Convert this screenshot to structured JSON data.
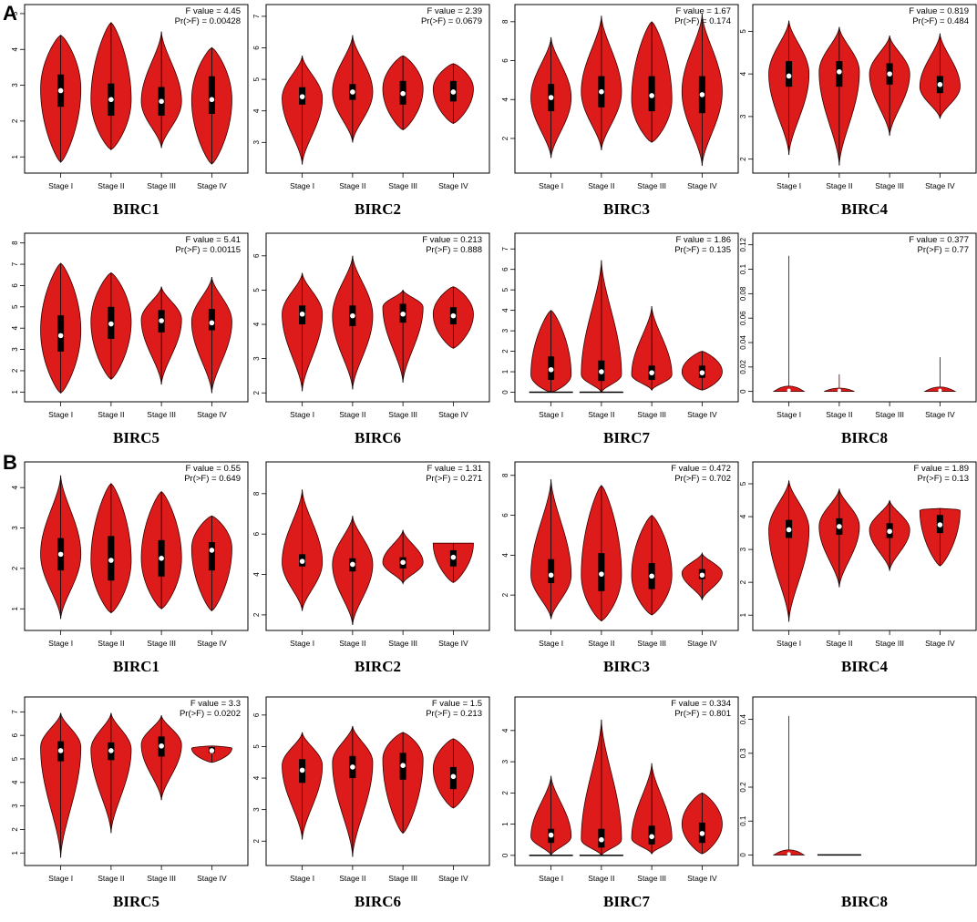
{
  "colors": {
    "violin_fill": "#dd1b1b",
    "violin_stroke": "#3a0000",
    "box": "#000000",
    "median": "#ffffff",
    "frame": "#000000"
  },
  "panels": [
    {
      "label": "A"
    },
    {
      "label": "B"
    }
  ],
  "chart_data": [
    {
      "type": "violin",
      "panel": "A",
      "title": "BIRC1",
      "stats": [
        "F value = 4.45",
        "Pr(>F) = 0.00428"
      ],
      "categories": [
        "Stage I",
        "Stage II",
        "Stage III",
        "Stage IV"
      ],
      "ylim": [
        0.7,
        5.1
      ],
      "yticks": [
        1,
        2,
        3,
        4,
        5
      ],
      "series": [
        {
          "min": 0.85,
          "q1": 2.4,
          "median": 2.85,
          "q3": 3.3,
          "max": 4.4,
          "mode": 2.9
        },
        {
          "min": 1.2,
          "q1": 2.15,
          "median": 2.6,
          "q3": 3.05,
          "max": 4.75,
          "mode": 2.6
        },
        {
          "min": 1.25,
          "q1": 2.15,
          "median": 2.55,
          "q3": 2.95,
          "max": 4.5,
          "mode": 2.55
        },
        {
          "min": 0.8,
          "q1": 2.2,
          "median": 2.6,
          "q3": 3.25,
          "max": 4.05,
          "mode": 2.6
        }
      ]
    },
    {
      "type": "violin",
      "panel": "A",
      "title": "BIRC2",
      "stats": [
        "F value = 2.39",
        "Pr(>F) = 0.0679"
      ],
      "categories": [
        "Stage I",
        "Stage II",
        "Stage III",
        "Stage IV"
      ],
      "ylim": [
        2.2,
        7.2
      ],
      "yticks": [
        3,
        4,
        5,
        6,
        7
      ],
      "series": [
        {
          "min": 2.3,
          "q1": 4.2,
          "median": 4.45,
          "q3": 4.75,
          "max": 5.75,
          "mode": 4.4
        },
        {
          "min": 3.0,
          "q1": 4.35,
          "median": 4.6,
          "q3": 4.85,
          "max": 6.4,
          "mode": 4.6
        },
        {
          "min": 3.4,
          "q1": 4.2,
          "median": 4.55,
          "q3": 4.95,
          "max": 5.75,
          "mode": 4.7
        },
        {
          "min": 3.6,
          "q1": 4.3,
          "median": 4.6,
          "q3": 4.95,
          "max": 5.5,
          "mode": 4.7
        }
      ]
    },
    {
      "type": "violin",
      "panel": "A",
      "title": "BIRC3",
      "stats": [
        "F value = 1.67",
        "Pr(>F) = 0.174"
      ],
      "categories": [
        "Stage I",
        "Stage II",
        "Stage III",
        "Stage IV"
      ],
      "ylim": [
        0.5,
        8.6
      ],
      "yticks": [
        2,
        4,
        6,
        8
      ],
      "series": [
        {
          "min": 1.0,
          "q1": 3.4,
          "median": 4.1,
          "q3": 4.8,
          "max": 7.2,
          "mode": 4.1
        },
        {
          "min": 1.4,
          "q1": 3.6,
          "median": 4.4,
          "q3": 5.2,
          "max": 8.3,
          "mode": 4.4
        },
        {
          "min": 1.8,
          "q1": 3.4,
          "median": 4.2,
          "q3": 5.2,
          "max": 8.0,
          "mode": 4.0
        },
        {
          "min": 0.6,
          "q1": 3.3,
          "median": 4.25,
          "q3": 5.2,
          "max": 8.4,
          "mode": 4.4
        }
      ]
    },
    {
      "type": "violin",
      "panel": "A",
      "title": "BIRC4",
      "stats": [
        "F value = 0.819",
        "Pr(>F) = 0.484"
      ],
      "categories": [
        "Stage I",
        "Stage II",
        "Stage III",
        "Stage IV"
      ],
      "ylim": [
        1.8,
        5.5
      ],
      "yticks": [
        2,
        3,
        4,
        5
      ],
      "series": [
        {
          "min": 2.1,
          "q1": 3.7,
          "median": 3.95,
          "q3": 4.3,
          "max": 5.25,
          "mode": 4.0
        },
        {
          "min": 1.85,
          "q1": 3.7,
          "median": 4.05,
          "q3": 4.3,
          "max": 5.1,
          "mode": 4.05
        },
        {
          "min": 2.55,
          "q1": 3.75,
          "median": 4.0,
          "q3": 4.25,
          "max": 4.9,
          "mode": 4.0
        },
        {
          "min": 2.95,
          "q1": 3.55,
          "median": 3.75,
          "q3": 3.95,
          "max": 4.95,
          "mode": 3.7
        }
      ]
    },
    {
      "type": "violin",
      "panel": "A",
      "title": "BIRC5",
      "stats": [
        "F value = 5.41",
        "Pr(>F) = 0.00115"
      ],
      "categories": [
        "Stage I",
        "Stage II",
        "Stage III",
        "Stage IV"
      ],
      "ylim": [
        0.8,
        8.2
      ],
      "yticks": [
        1,
        2,
        3,
        4,
        5,
        6,
        7,
        8
      ],
      "series": [
        {
          "min": 0.95,
          "q1": 2.9,
          "median": 3.65,
          "q3": 4.6,
          "max": 7.05,
          "mode": 3.9
        },
        {
          "min": 1.6,
          "q1": 3.5,
          "median": 4.2,
          "q3": 5.0,
          "max": 6.6,
          "mode": 4.3
        },
        {
          "min": 1.35,
          "q1": 3.8,
          "median": 4.35,
          "q3": 4.85,
          "max": 5.95,
          "mode": 4.4
        },
        {
          "min": 0.95,
          "q1": 3.9,
          "median": 4.25,
          "q3": 4.9,
          "max": 6.4,
          "mode": 4.3
        }
      ]
    },
    {
      "type": "violin",
      "panel": "A",
      "title": "BIRC6",
      "stats": [
        "F value = 0.213",
        "Pr(>F) = 0.888"
      ],
      "categories": [
        "Stage I",
        "Stage II",
        "Stage III",
        "Stage IV"
      ],
      "ylim": [
        1.9,
        6.5
      ],
      "yticks": [
        2,
        3,
        4,
        5,
        6
      ],
      "series": [
        {
          "min": 2.05,
          "q1": 4.0,
          "median": 4.3,
          "q3": 4.55,
          "max": 5.5,
          "mode": 4.3
        },
        {
          "min": 2.1,
          "q1": 3.95,
          "median": 4.25,
          "q3": 4.55,
          "max": 6.0,
          "mode": 4.25
        },
        {
          "min": 2.3,
          "q1": 4.05,
          "median": 4.3,
          "q3": 4.6,
          "max": 5.0,
          "mode": 4.5
        },
        {
          "min": 3.3,
          "q1": 4.0,
          "median": 4.25,
          "q3": 4.5,
          "max": 5.1,
          "mode": 4.3
        }
      ]
    },
    {
      "type": "violin",
      "panel": "A",
      "title": "BIRC7",
      "stats": [
        "F value = 1.86",
        "Pr(>F) = 0.135"
      ],
      "categories": [
        "Stage I",
        "Stage II",
        "Stage III",
        "Stage IV"
      ],
      "ylim": [
        -0.2,
        7.5
      ],
      "yticks": [
        0,
        1,
        2,
        3,
        4,
        5,
        6,
        7
      ],
      "series": [
        {
          "min": 0.0,
          "q1": 0.6,
          "median": 1.1,
          "q3": 1.75,
          "max": 4.0,
          "mode": 0.85,
          "zero_line": true
        },
        {
          "min": 0.0,
          "q1": 0.55,
          "median": 1.0,
          "q3": 1.55,
          "max": 6.45,
          "mode": 0.85,
          "zero_line": true
        },
        {
          "min": 0.1,
          "q1": 0.6,
          "median": 0.95,
          "q3": 1.3,
          "max": 4.2,
          "mode": 0.85
        },
        {
          "min": 0.1,
          "q1": 0.7,
          "median": 0.95,
          "q3": 1.3,
          "max": 2.0,
          "mode": 1.0
        }
      ]
    },
    {
      "type": "violin",
      "panel": "A",
      "title": "BIRC8",
      "stats": [
        "F value = 0.377",
        "Pr(>F) = 0.77"
      ],
      "categories": [
        "Stage I",
        "Stage II",
        "Stage III",
        "Stage IV"
      ],
      "ylim": [
        -0.004,
        0.125
      ],
      "yticks": [
        0.0,
        0.02,
        0.04,
        0.06,
        0.08,
        0.1,
        0.12
      ],
      "series": [
        {
          "min": 0.0,
          "q1": 0.0,
          "median": 0.0,
          "q3": 0.001,
          "max": 0.111,
          "mode": 0.002,
          "flat": true
        },
        {
          "min": 0.0,
          "q1": 0.0,
          "median": 0.0,
          "q3": 0.0005,
          "max": 0.014,
          "mode": 0.001,
          "flat": true
        },
        null,
        {
          "min": 0.0,
          "q1": 0.0,
          "median": 0.0,
          "q3": 0.002,
          "max": 0.028,
          "mode": 0.003,
          "flat": true
        }
      ]
    },
    {
      "type": "violin",
      "panel": "B",
      "title": "BIRC1",
      "stats": [
        "F value = 0.55",
        "Pr(>F) = 0.649"
      ],
      "categories": [
        "Stage I",
        "Stage II",
        "Stage III",
        "Stage IV"
      ],
      "ylim": [
        0.6,
        4.5
      ],
      "yticks": [
        1,
        2,
        3,
        4
      ],
      "series": [
        {
          "min": 0.75,
          "q1": 1.95,
          "median": 2.35,
          "q3": 2.75,
          "max": 4.3,
          "mode": 2.35
        },
        {
          "min": 0.9,
          "q1": 1.7,
          "median": 2.2,
          "q3": 2.8,
          "max": 4.1,
          "mode": 2.2
        },
        {
          "min": 1.0,
          "q1": 1.8,
          "median": 2.25,
          "q3": 2.7,
          "max": 3.9,
          "mode": 2.25
        },
        {
          "min": 0.95,
          "q1": 1.95,
          "median": 2.45,
          "q3": 2.65,
          "max": 3.3,
          "mode": 2.5
        }
      ]
    },
    {
      "type": "violin",
      "panel": "B",
      "title": "BIRC2",
      "stats": [
        "F value = 1.31",
        "Pr(>F) = 0.271"
      ],
      "categories": [
        "Stage I",
        "Stage II",
        "Stage III",
        "Stage IV"
      ],
      "ylim": [
        1.5,
        9.3
      ],
      "yticks": [
        2,
        4,
        6,
        8
      ],
      "series": [
        {
          "min": 2.2,
          "q1": 4.4,
          "median": 4.65,
          "q3": 5.0,
          "max": 8.2,
          "mode": 4.6
        },
        {
          "min": 1.5,
          "q1": 4.15,
          "median": 4.5,
          "q3": 4.8,
          "max": 6.9,
          "mode": 4.5
        },
        {
          "min": 3.55,
          "q1": 4.3,
          "median": 4.6,
          "q3": 4.85,
          "max": 6.2,
          "mode": 4.6
        },
        {
          "min": 3.6,
          "q1": 4.4,
          "median": 4.85,
          "q3": 5.2,
          "max": 5.55,
          "mode": 5.55
        }
      ]
    },
    {
      "type": "violin",
      "panel": "B",
      "title": "BIRC3",
      "stats": [
        "F value = 0.472",
        "Pr(>F) = 0.702"
      ],
      "categories": [
        "Stage I",
        "Stage II",
        "Stage III",
        "Stage IV"
      ],
      "ylim": [
        0.5,
        8.4
      ],
      "yticks": [
        2,
        4,
        6,
        8
      ],
      "series": [
        {
          "min": 0.8,
          "q1": 2.6,
          "median": 3.0,
          "q3": 3.8,
          "max": 7.8,
          "mode": 3.0
        },
        {
          "min": 0.7,
          "q1": 2.2,
          "median": 3.05,
          "q3": 4.1,
          "max": 7.5,
          "mode": 3.0
        },
        {
          "min": 1.0,
          "q1": 2.3,
          "median": 2.95,
          "q3": 3.6,
          "max": 6.0,
          "mode": 3.0
        },
        {
          "min": 1.75,
          "q1": 2.8,
          "median": 3.0,
          "q3": 3.3,
          "max": 4.1,
          "mode": 3.1
        }
      ]
    },
    {
      "type": "violin",
      "panel": "B",
      "title": "BIRC4",
      "stats": [
        "F value = 1.89",
        "Pr(>F) = 0.13"
      ],
      "categories": [
        "Stage I",
        "Stage II",
        "Stage III",
        "Stage IV"
      ],
      "ylim": [
        0.7,
        5.5
      ],
      "yticks": [
        1,
        2,
        3,
        4,
        5
      ],
      "series": [
        {
          "min": 0.8,
          "q1": 3.35,
          "median": 3.6,
          "q3": 3.9,
          "max": 5.1,
          "mode": 3.6
        },
        {
          "min": 1.85,
          "q1": 3.45,
          "median": 3.7,
          "q3": 3.95,
          "max": 4.85,
          "mode": 3.7
        },
        {
          "min": 2.35,
          "q1": 3.35,
          "median": 3.55,
          "q3": 3.8,
          "max": 4.5,
          "mode": 3.6
        },
        {
          "min": 2.5,
          "q1": 3.5,
          "median": 3.75,
          "q3": 4.05,
          "max": 4.25,
          "mode": 4.2
        }
      ]
    },
    {
      "type": "violin",
      "panel": "B",
      "title": "BIRC5",
      "stats": [
        "F value = 3.3",
        "Pr(>F) = 0.0202"
      ],
      "categories": [
        "Stage I",
        "Stage II",
        "Stage III",
        "Stage IV"
      ],
      "ylim": [
        0.7,
        7.4
      ],
      "yticks": [
        1,
        2,
        3,
        4,
        5,
        6,
        7
      ],
      "series": [
        {
          "min": 0.8,
          "q1": 4.9,
          "median": 5.35,
          "q3": 5.75,
          "max": 6.95,
          "mode": 5.5
        },
        {
          "min": 1.85,
          "q1": 4.95,
          "median": 5.35,
          "q3": 5.7,
          "max": 6.95,
          "mode": 5.4
        },
        {
          "min": 3.25,
          "q1": 5.1,
          "median": 5.55,
          "q3": 5.95,
          "max": 6.85,
          "mode": 5.6
        },
        {
          "min": 4.85,
          "q1": 5.25,
          "median": 5.35,
          "q3": 5.5,
          "max": 5.55,
          "mode": 5.45
        }
      ]
    },
    {
      "type": "violin",
      "panel": "B",
      "title": "BIRC6",
      "stats": [
        "F value = 1.5",
        "Pr(>F) = 0.213"
      ],
      "categories": [
        "Stage I",
        "Stage II",
        "Stage III",
        "Stage IV"
      ],
      "ylim": [
        1.4,
        6.4
      ],
      "yticks": [
        2,
        3,
        4,
        5,
        6
      ],
      "series": [
        {
          "min": 2.05,
          "q1": 3.85,
          "median": 4.25,
          "q3": 4.6,
          "max": 5.45,
          "mode": 4.4
        },
        {
          "min": 1.5,
          "q1": 4.0,
          "median": 4.35,
          "q3": 4.7,
          "max": 5.65,
          "mode": 4.5
        },
        {
          "min": 2.25,
          "q1": 3.95,
          "median": 4.4,
          "q3": 4.8,
          "max": 5.45,
          "mode": 4.6
        },
        {
          "min": 3.05,
          "q1": 3.65,
          "median": 4.05,
          "q3": 4.35,
          "max": 5.25,
          "mode": 4.3
        }
      ]
    },
    {
      "type": "violin",
      "panel": "B",
      "title": "BIRC7",
      "stats": [
        "F value = 0.334",
        "Pr(>F) = 0.801"
      ],
      "categories": [
        "Stage I",
        "Stage II",
        "Stage III",
        "Stage IV"
      ],
      "ylim": [
        -0.15,
        4.9
      ],
      "yticks": [
        0,
        1,
        2,
        3,
        4
      ],
      "series": [
        {
          "min": 0.0,
          "q1": 0.4,
          "median": 0.65,
          "q3": 0.85,
          "max": 2.55,
          "mode": 0.6,
          "zero_line": true
        },
        {
          "min": 0.0,
          "q1": 0.25,
          "median": 0.5,
          "q3": 0.85,
          "max": 4.35,
          "mode": 0.5,
          "zero_line": true
        },
        {
          "min": 0.05,
          "q1": 0.35,
          "median": 0.6,
          "q3": 0.95,
          "max": 2.95,
          "mode": 0.55
        },
        {
          "min": 0.05,
          "q1": 0.4,
          "median": 0.7,
          "q3": 1.05,
          "max": 2.0,
          "mode": 1.0
        }
      ]
    },
    {
      "type": "violin",
      "panel": "B",
      "title": "BIRC8",
      "stats": [],
      "categories": [],
      "ylim": [
        -0.015,
        0.45
      ],
      "yticks": [
        0.0,
        0.1,
        0.2,
        0.3,
        0.4
      ],
      "series": [
        {
          "min": 0.0,
          "q1": 0.0,
          "median": 0.0,
          "q3": 0.002,
          "max": 0.41,
          "mode": 0.003,
          "flat": true
        },
        {
          "min": 0.0,
          "q1": 0.0,
          "median": 0.0,
          "q3": 0.0005,
          "max": 0.0008,
          "mode": 0.0005,
          "flat": true,
          "line_only": true
        },
        null,
        null
      ]
    }
  ]
}
